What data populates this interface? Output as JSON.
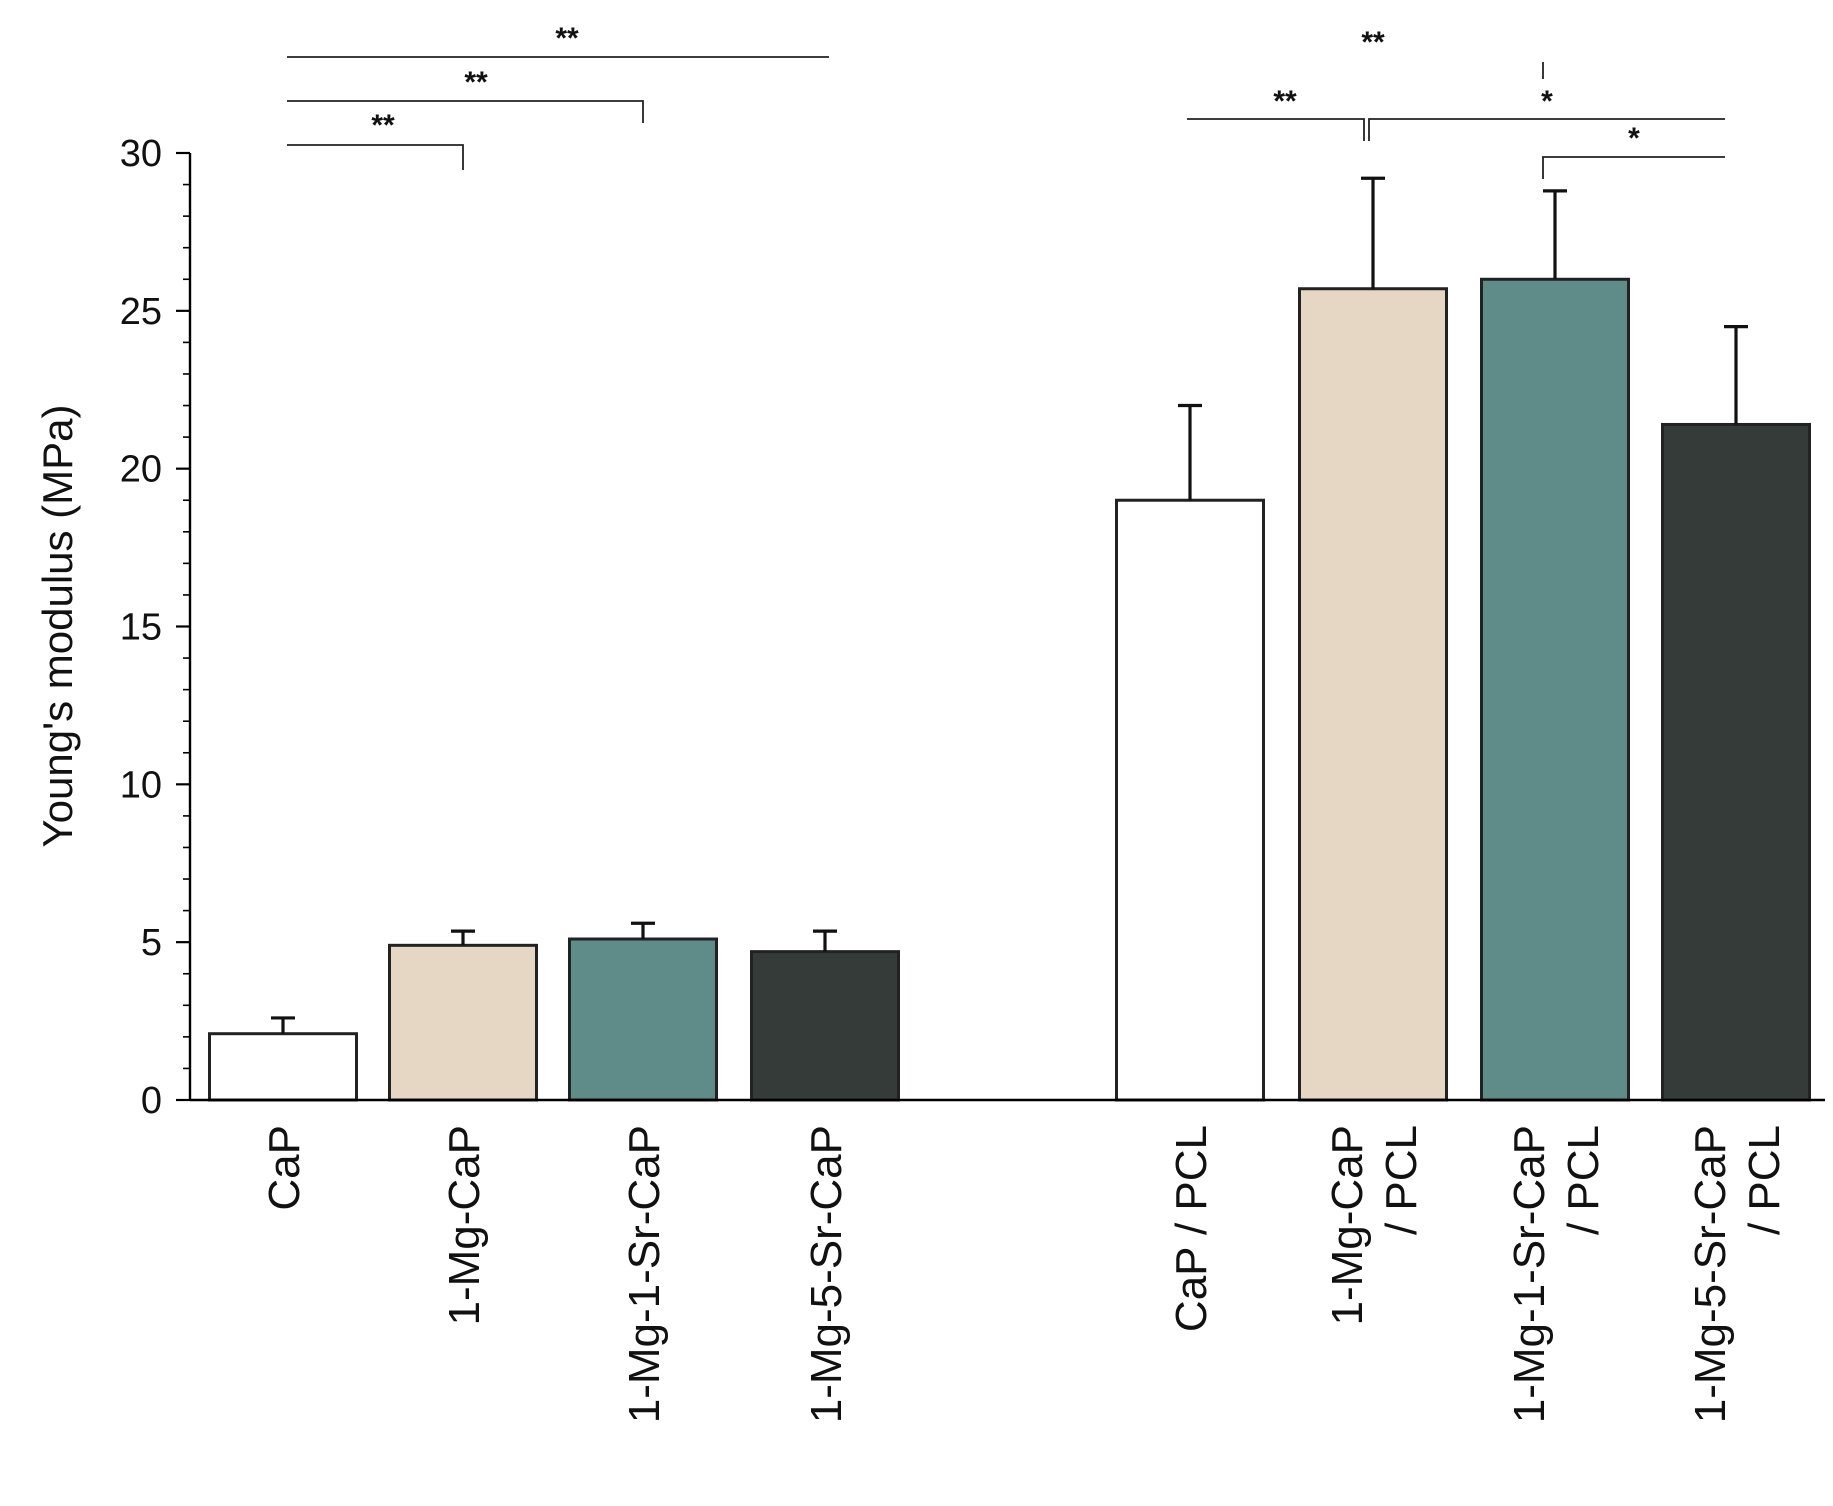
{
  "chart_data": {
    "type": "bar",
    "title": "",
    "xlabel": "",
    "ylabel": "Young's modulus (MPa)",
    "ylim": [
      0,
      30
    ],
    "yticks": [
      "0",
      "5",
      "10",
      "15",
      "20",
      "25",
      "30"
    ],
    "grid": false,
    "categories": [
      {
        "lines": [
          "CaP"
        ],
        "value": 2.1,
        "error": 0.5,
        "color": "#ffffff"
      },
      {
        "lines": [
          "1-Mg-CaP"
        ],
        "value": 4.9,
        "error": 0.45,
        "color": "#e6d6c4"
      },
      {
        "lines": [
          "1-Mg-1-Sr-CaP"
        ],
        "value": 5.1,
        "error": 0.5,
        "color": "#5f8b88"
      },
      {
        "lines": [
          "1-Mg-5-Sr-CaP"
        ],
        "value": 4.7,
        "error": 0.65,
        "color": "#353b39"
      },
      {
        "lines": [
          "CaP / PCL"
        ],
        "value": 19.0,
        "error": 3.0,
        "color": "#ffffff"
      },
      {
        "lines": [
          "1-Mg-CaP",
          "/ PCL"
        ],
        "value": 25.7,
        "error": 3.5,
        "color": "#e6d6c4"
      },
      {
        "lines": [
          "1-Mg-1-Sr-CaP",
          "/ PCL"
        ],
        "value": 26.0,
        "error": 2.8,
        "color": "#5f8b88"
      },
      {
        "lines": [
          "1-Mg-5-Sr-CaP",
          "/ PCL"
        ],
        "value": 21.4,
        "error": 3.1,
        "color": "#353b39"
      }
    ],
    "significance": [
      {
        "from": 0,
        "to": 3,
        "label": "**"
      },
      {
        "from": 0,
        "to": 2,
        "label": "**"
      },
      {
        "from": 0,
        "to": 1,
        "label": "**"
      },
      {
        "from": 4,
        "to": 5,
        "label": "**"
      },
      {
        "from": 5,
        "to": 7,
        "label": "*"
      },
      {
        "from": 6,
        "to": 7,
        "label": "*"
      },
      {
        "from": 5,
        "to": 6,
        "label": "**"
      }
    ]
  }
}
